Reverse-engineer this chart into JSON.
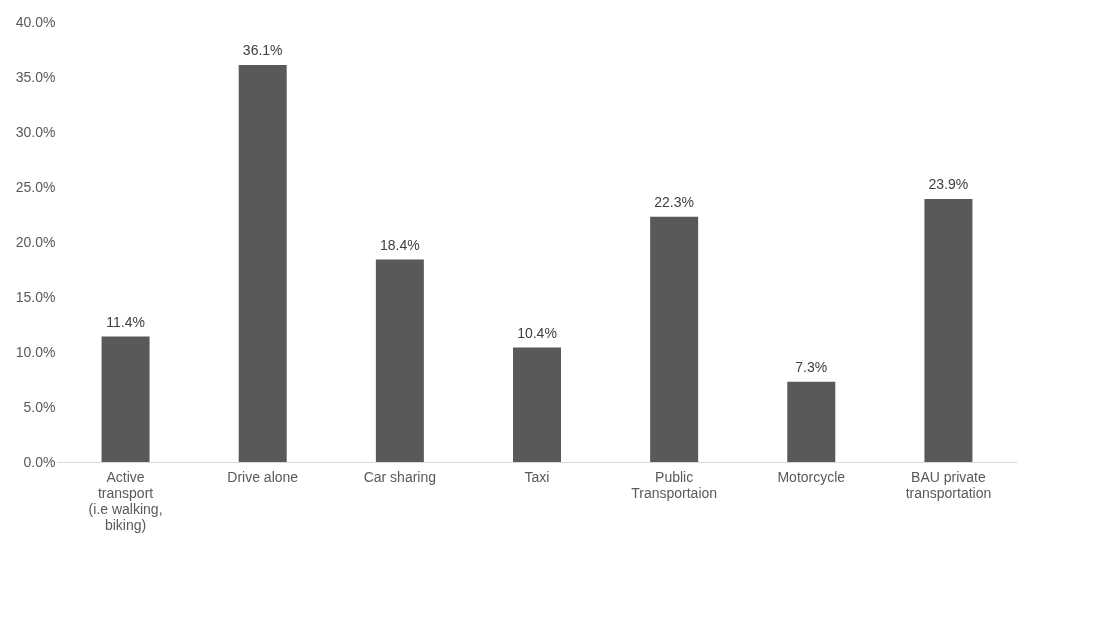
{
  "chart_data": {
    "type": "bar",
    "categories": [
      "Active transport (i.e walking, biking)",
      "Drive alone",
      "Car sharing",
      "Taxi",
      "Public Transportaion",
      "Motorcycle",
      "BAU private transportation"
    ],
    "values": [
      11.4,
      36.1,
      18.4,
      10.4,
      22.3,
      7.3,
      23.9
    ],
    "value_labels": [
      "11.4%",
      "36.1%",
      "18.4%",
      "10.4%",
      "22.3%",
      "7.3%",
      "23.9%"
    ],
    "color": "#595959",
    "ylim": [
      0,
      40
    ],
    "yticks": [
      {
        "value": 0,
        "label": "0.0%"
      },
      {
        "value": 5,
        "label": "5.0%"
      },
      {
        "value": 10,
        "label": "10.0%"
      },
      {
        "value": 15,
        "label": "15.0%"
      },
      {
        "value": 20,
        "label": "20.0%"
      },
      {
        "value": 25,
        "label": "25.0%"
      },
      {
        "value": 30,
        "label": "30.0%"
      },
      {
        "value": 35,
        "label": "35.0%"
      },
      {
        "value": 40,
        "label": "40.0%"
      }
    ],
    "grid": false
  }
}
